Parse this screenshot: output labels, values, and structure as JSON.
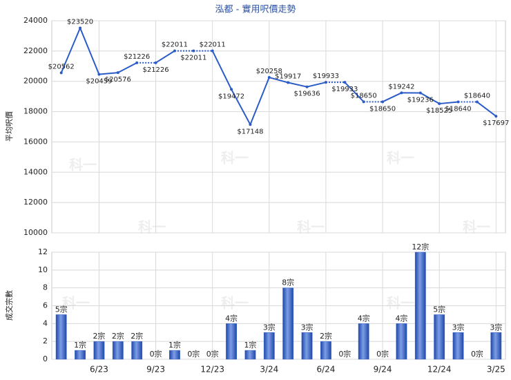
{
  "watermark": "科一",
  "chart_data": [
    {
      "type": "line",
      "title": "泓都 - 實用呎價走勢",
      "y_label": "平均呎價",
      "categories": [
        null,
        null,
        "6/23",
        null,
        null,
        "9/23",
        null,
        null,
        "12/23",
        null,
        null,
        "3/24",
        null,
        null,
        "6/24",
        null,
        null,
        "9/24",
        null,
        null,
        "12/24",
        null,
        null,
        "3/25"
      ],
      "values": [
        20562,
        23520,
        20459,
        20576,
        21226,
        21226,
        22011,
        22011,
        22011,
        19472,
        17148,
        20258,
        19917,
        19636,
        19933,
        19933,
        18650,
        18650,
        19242,
        19236,
        18525,
        18640,
        18640,
        17697
      ],
      "value_labels": [
        "$20562",
        "$23520",
        "$20459",
        "$20576",
        "$21226",
        "$21226",
        "$22011",
        "$22011",
        "$22011",
        "$19472",
        "$17148",
        "$20258",
        "$19917",
        "$19636",
        "$19933",
        "$19933",
        "$18650",
        "$18650",
        "$19242",
        "$19236",
        "$18525",
        "$18640",
        "$18640",
        "$17697"
      ],
      "color": "#2a5bc8",
      "ylim": [
        10000,
        24000
      ],
      "yticks": [
        10000,
        12000,
        14000,
        16000,
        18000,
        20000,
        22000,
        24000
      ],
      "grid": true
    },
    {
      "type": "bar",
      "y_label": "成交宗數",
      "categories": [
        null,
        null,
        "6/23",
        null,
        null,
        "9/23",
        null,
        null,
        "12/23",
        null,
        null,
        "3/24",
        null,
        null,
        "6/24",
        null,
        null,
        "9/24",
        null,
        null,
        "12/24",
        null,
        null,
        "3/25"
      ],
      "values": [
        5,
        1,
        2,
        2,
        2,
        0,
        1,
        0,
        0,
        4,
        1,
        3,
        8,
        3,
        2,
        0,
        4,
        0,
        4,
        12,
        5,
        3,
        0,
        3
      ],
      "value_labels": [
        "5宗",
        "1宗",
        "2宗",
        "2宗",
        "2宗",
        "0宗",
        "1宗",
        "0宗",
        "0宗",
        "4宗",
        "1宗",
        "3宗",
        "8宗",
        "3宗",
        "2宗",
        "0宗",
        "4宗",
        "0宗",
        "4宗",
        "12宗",
        "5宗",
        "3宗",
        "0宗",
        "3宗"
      ],
      "color": "#3a68cc",
      "ylim": [
        0,
        12
      ],
      "yticks": [
        0,
        2,
        4,
        6,
        8,
        10,
        12
      ],
      "grid": true
    }
  ]
}
